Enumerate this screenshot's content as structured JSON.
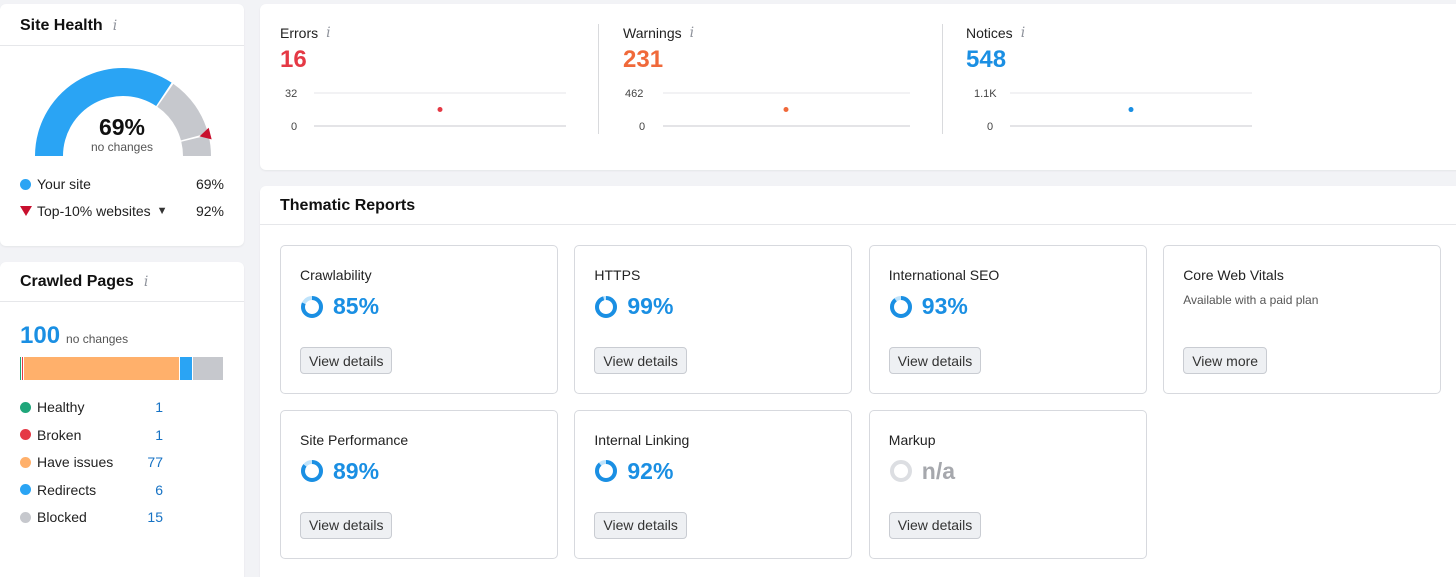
{
  "colors": {
    "accent_blue": "#1a8fe3",
    "error_red": "#e53945",
    "warning_orange": "#f0693a",
    "notice_blue": "#1a8fe3",
    "healthy_green": "#1fa67a",
    "broken_red": "#e53945",
    "issues_orange": "#ffb06b",
    "redirects_blue": "#2aa4f4",
    "blocked_gray": "#c6c8cd",
    "gauge_blue": "#2aa4f4",
    "gauge_gray": "#c6c8cd"
  },
  "site_health": {
    "title": "Site Health",
    "info_icon": "i",
    "score": 69,
    "score_text": "69%",
    "change_text": "no changes",
    "top10_score": 92,
    "legend": [
      {
        "label": "Your site",
        "value": "69%",
        "marker": "dot"
      },
      {
        "label": "Top-10% websites",
        "value": "92%",
        "marker": "triangle",
        "dropdown": true
      }
    ]
  },
  "crawled_pages": {
    "title": "Crawled Pages",
    "info_icon": "i",
    "total": "100",
    "change_text": "no changes",
    "rows": [
      {
        "label": "Healthy",
        "count": "1"
      },
      {
        "label": "Broken",
        "count": "1"
      },
      {
        "label": "Have issues",
        "count": "77"
      },
      {
        "label": "Redirects",
        "count": "6"
      },
      {
        "label": "Blocked",
        "count": "15"
      }
    ]
  },
  "issues": [
    {
      "label": "Errors",
      "info_icon": "i",
      "value": "16",
      "y_max_label": "32",
      "y_min_label": "0",
      "y_max": 32,
      "point": 16
    },
    {
      "label": "Warnings",
      "info_icon": "i",
      "value": "231",
      "y_max_label": "462",
      "y_min_label": "0",
      "y_max": 462,
      "point": 231
    },
    {
      "label": "Notices",
      "info_icon": "i",
      "value": "548",
      "y_max_label": "1.1K",
      "y_min_label": "0",
      "y_max": 1100,
      "point": 548
    }
  ],
  "thematic_reports": {
    "title": "Thematic Reports",
    "tiles": [
      {
        "name": "Crawlability",
        "score": "85%",
        "score_value": 85,
        "button": "View details"
      },
      {
        "name": "HTTPS",
        "score": "99%",
        "score_value": 99,
        "button": "View details"
      },
      {
        "name": "International SEO",
        "score": "93%",
        "score_value": 93,
        "button": "View details"
      },
      {
        "name": "Core Web Vitals",
        "note": "Available with a paid plan",
        "button": "View more"
      },
      {
        "name": "Site Performance",
        "score": "89%",
        "score_value": 89,
        "button": "View details"
      },
      {
        "name": "Internal Linking",
        "score": "92%",
        "score_value": 92,
        "button": "View details"
      },
      {
        "name": "Markup",
        "score": "n/a",
        "button": "View details"
      }
    ]
  }
}
